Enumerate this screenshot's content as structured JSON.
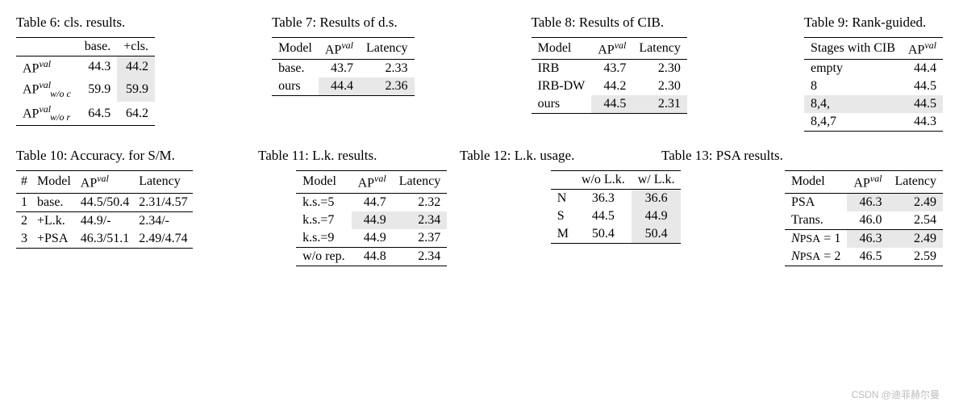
{
  "highlight_color": "#e8e8e8",
  "text_color": "#000000",
  "background_color": "#ffffff",
  "font_family": "Times New Roman",
  "t6": {
    "caption": "Table 6: cls. results.",
    "header": [
      "",
      "base.",
      "+cls."
    ],
    "rows": [
      {
        "label_html": "AP<span class='sup'>val</span>",
        "base": "44.3",
        "cls": "44.2",
        "hl_cls": true
      },
      {
        "label_html": "AP<span class='sup'>val</span><span class='sub'>w/o c</span>",
        "base": "59.9",
        "cls": "59.9",
        "hl_cls": true
      },
      {
        "label_html": "AP<span class='sup'>val</span><span class='sub'>w/o r</span>",
        "base": "64.5",
        "cls": "64.2",
        "hl_cls": false
      }
    ]
  },
  "t7": {
    "caption": "Table 7: Results of d.s.",
    "header": [
      "Model",
      "AP_val",
      "Latency"
    ],
    "rows": [
      {
        "model": "base.",
        "ap": "43.7",
        "lat": "2.33",
        "hl": false
      },
      {
        "model": "ours",
        "ap": "44.4",
        "lat": "2.36",
        "hl": true
      }
    ]
  },
  "t8": {
    "caption": "Table 8: Results of CIB.",
    "header": [
      "Model",
      "AP_val",
      "Latency"
    ],
    "rows": [
      {
        "model": "IRB",
        "ap": "43.7",
        "lat": "2.30",
        "hl": false
      },
      {
        "model": "IRB-DW",
        "ap": "44.2",
        "lat": "2.30",
        "hl": false
      },
      {
        "model": "ours",
        "ap": "44.5",
        "lat": "2.31",
        "hl": true
      }
    ]
  },
  "t9": {
    "caption": "Table 9: Rank-guided.",
    "header": [
      "Stages with CIB",
      "AP_val"
    ],
    "rows": [
      {
        "stages": "empty",
        "ap": "44.4",
        "hl": false
      },
      {
        "stages": "8",
        "ap": "44.5",
        "hl": false
      },
      {
        "stages": "8,4,",
        "ap": "44.5",
        "hl": true
      },
      {
        "stages": "8,4,7",
        "ap": "44.3",
        "hl": false
      }
    ]
  },
  "t10": {
    "caption": "Table 10: Accuracy. for S/M.",
    "header": [
      "#",
      "Model",
      "AP_val",
      "Latency"
    ],
    "rows": [
      {
        "n": "1",
        "model": "base.",
        "ap": "44.5/50.4",
        "lat": "2.31/4.57",
        "mid_after": true
      },
      {
        "n": "2",
        "model": "+L.k.",
        "ap": "44.9/-",
        "lat": "2.34/-",
        "mid_after": false
      },
      {
        "n": "3",
        "model": "+PSA",
        "ap": "46.3/51.1",
        "lat": "2.49/4.74",
        "mid_after": false
      }
    ]
  },
  "t11": {
    "caption": "Table 11: L.k. results.",
    "header": [
      "Model",
      "AP_val",
      "Latency"
    ],
    "rows": [
      {
        "model": "k.s.=5",
        "ap": "44.7",
        "lat": "2.32",
        "hl": false,
        "mid_after": false
      },
      {
        "model": "k.s.=7",
        "ap": "44.9",
        "lat": "2.34",
        "hl": true,
        "mid_after": false
      },
      {
        "model": "k.s.=9",
        "ap": "44.9",
        "lat": "2.37",
        "hl": false,
        "mid_after": true
      },
      {
        "model": "w/o rep.",
        "ap": "44.8",
        "lat": "2.34",
        "hl": false,
        "mid_after": false
      }
    ]
  },
  "t12": {
    "caption": "Table 12: L.k. usage.",
    "header": [
      "",
      "w/o L.k.",
      "w/ L.k."
    ],
    "rows": [
      {
        "sz": "N",
        "wo": "36.3",
        "w": "36.6",
        "hl_w": true
      },
      {
        "sz": "S",
        "wo": "44.5",
        "w": "44.9",
        "hl_w": true
      },
      {
        "sz": "M",
        "wo": "50.4",
        "w": "50.4",
        "hl_w": true
      }
    ]
  },
  "t13": {
    "caption": "Table 13: PSA results.",
    "header": [
      "Model",
      "AP_val",
      "Latency"
    ],
    "rows": [
      {
        "model_html": "PSA",
        "ap": "46.3",
        "lat": "2.49",
        "hl": true,
        "mid_after": false
      },
      {
        "model_html": "Trans.",
        "ap": "46.0",
        "lat": "2.54",
        "hl": false,
        "mid_after": true
      },
      {
        "model_html": "<span class='npsa'>N</span><span class='smallcaps'>PSA</span> = 1",
        "ap": "46.3",
        "lat": "2.49",
        "hl": true,
        "mid_after": false
      },
      {
        "model_html": "<span class='npsa'>N</span><span class='smallcaps'>PSA</span> = 2",
        "ap": "46.5",
        "lat": "2.59",
        "hl": false,
        "mid_after": false
      }
    ]
  },
  "watermark": "CSDN @迪菲赫尔曼"
}
